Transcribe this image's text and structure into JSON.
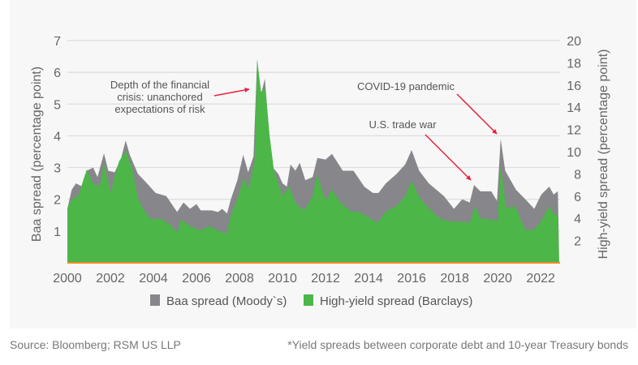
{
  "chart_data": {
    "type": "area",
    "xlabel": "",
    "ylabel": "Baa spread (percentage point)",
    "ylabel_right": "High-yield spread (percentage point)",
    "xlim": [
      2000,
      2022.9
    ],
    "ylim": [
      0,
      7
    ],
    "ylim_right": [
      0,
      20
    ],
    "x_ticks": [
      "2000",
      "2002",
      "2004",
      "2006",
      "2008",
      "2010",
      "2012",
      "2014",
      "2016",
      "2018",
      "2020",
      "2022"
    ],
    "y_ticks": [
      "1",
      "2",
      "3",
      "4",
      "5",
      "6",
      "7"
    ],
    "y_ticks_right": [
      "2",
      "4",
      "6",
      "8",
      "10",
      "12",
      "14",
      "16",
      "18",
      "20"
    ],
    "grid": true,
    "legend_position": "bottom",
    "series": [
      {
        "name": "Baa spread (Moody's)",
        "legend_label": "Baa spread (Moody`s)",
        "axis": "left",
        "color": "#86868b",
        "x": [
          2000.0,
          2000.2,
          2000.4,
          2000.7,
          2000.9,
          2001.2,
          2001.4,
          2001.7,
          2001.9,
          2002.2,
          2002.5,
          2002.71,
          2002.9,
          2003.28,
          2003.7,
          2004.1,
          2004.6,
          2005.1,
          2005.4,
          2005.7,
          2006.0,
          2006.2,
          2006.7,
          2007.0,
          2007.2,
          2007.42,
          2007.6,
          2007.9,
          2008.17,
          2008.4,
          2008.65,
          2008.82,
          2009.0,
          2009.18,
          2009.4,
          2009.55,
          2009.8,
          2010.0,
          2010.2,
          2010.37,
          2010.6,
          2010.8,
          2011.06,
          2011.4,
          2011.62,
          2012.0,
          2012.3,
          2012.8,
          2013.3,
          2013.8,
          2014.2,
          2014.46,
          2014.8,
          2015.3,
          2015.7,
          2016.0,
          2016.35,
          2016.8,
          2017.5,
          2017.97,
          2018.35,
          2018.7,
          2018.9,
          2019.2,
          2019.7,
          2019.97,
          2020.14,
          2020.35,
          2020.85,
          2021.36,
          2021.7,
          2022.03,
          2022.4,
          2022.6,
          2022.8,
          2022.86
        ],
        "values": [
          1.7,
          2.3,
          2.5,
          2.4,
          2.9,
          3.0,
          2.7,
          3.45,
          2.9,
          2.85,
          3.3,
          3.85,
          3.4,
          2.8,
          2.5,
          2.2,
          2.1,
          1.6,
          1.9,
          1.7,
          1.85,
          1.65,
          1.65,
          1.6,
          1.7,
          1.55,
          2.0,
          2.6,
          3.4,
          2.85,
          3.35,
          6.4,
          5.3,
          5.8,
          3.9,
          3.0,
          2.8,
          2.5,
          2.4,
          3.1,
          2.9,
          3.15,
          2.6,
          2.7,
          3.3,
          3.25,
          3.43,
          2.9,
          2.9,
          2.4,
          2.2,
          2.2,
          2.5,
          2.8,
          3.1,
          3.55,
          2.9,
          2.5,
          2.1,
          1.7,
          2.0,
          1.9,
          2.45,
          2.25,
          2.25,
          1.95,
          3.9,
          2.9,
          2.3,
          1.95,
          1.7,
          2.15,
          2.4,
          2.15,
          2.25,
          0
        ]
      },
      {
        "name": "High-yield spread (Barclays)",
        "axis": "right",
        "color": "#4cb648",
        "x": [
          2000.0,
          2000.2,
          2000.5,
          2000.9,
          2001.2,
          2001.5,
          2001.7,
          2002.0,
          2002.4,
          2002.7,
          2003.0,
          2003.3,
          2003.6,
          2003.9,
          2004.3,
          2004.8,
          2005.1,
          2005.3,
          2005.7,
          2006.2,
          2006.6,
          2007.0,
          2007.4,
          2007.6,
          2007.9,
          2008.2,
          2008.4,
          2008.7,
          2008.82,
          2009.0,
          2009.2,
          2009.4,
          2009.6,
          2010.0,
          2010.3,
          2010.6,
          2011.0,
          2011.4,
          2011.6,
          2012.0,
          2012.3,
          2012.7,
          2013.2,
          2013.5,
          2014.0,
          2014.4,
          2014.8,
          2015.3,
          2015.7,
          2016.0,
          2016.35,
          2016.8,
          2017.3,
          2017.8,
          2018.3,
          2018.7,
          2018.95,
          2019.2,
          2019.7,
          2020.0,
          2020.14,
          2020.4,
          2020.8,
          2021.3,
          2021.7,
          2022.0,
          2022.4,
          2022.6,
          2022.8,
          2022.86
        ],
        "values": [
          4.9,
          5.7,
          6.0,
          8.4,
          7.1,
          6.9,
          9.0,
          6.3,
          9.1,
          10.1,
          8.6,
          5.7,
          4.6,
          3.9,
          4.0,
          3.4,
          2.7,
          3.9,
          3.3,
          2.9,
          3.3,
          2.9,
          2.6,
          4.3,
          5.7,
          7.7,
          6.6,
          9.1,
          18.3,
          15.4,
          15.7,
          11.4,
          8.3,
          6.0,
          6.9,
          5.4,
          4.7,
          6.0,
          8.0,
          5.6,
          6.6,
          5.4,
          4.6,
          4.6,
          4.1,
          3.6,
          4.6,
          5.1,
          6.0,
          7.4,
          5.9,
          4.9,
          4.0,
          3.7,
          3.7,
          3.6,
          5.1,
          4.0,
          3.9,
          3.7,
          8.7,
          4.9,
          5.1,
          2.9,
          3.0,
          3.7,
          5.1,
          4.4,
          4.3,
          0
        ]
      }
    ],
    "annotations": [
      {
        "lines": [
          "Depth of the financial",
          "crisis: unanchored",
          "expectations of risk"
        ],
        "arrow_to_x": 2008.7
      },
      {
        "lines": [
          "COVID-19 pandemic"
        ],
        "arrow_to_x": 2020.0
      },
      {
        "lines": [
          "U.S. trade war"
        ],
        "arrow_to_x": 2018.8
      }
    ],
    "annotation_color": "#e8203f",
    "baseline_color": "#f08a24"
  },
  "footer": {
    "source": "Source: Bloomberg; RSM US  LLP",
    "note": "*Yield spreads between corporate debt and 10-year Treasury bonds"
  }
}
